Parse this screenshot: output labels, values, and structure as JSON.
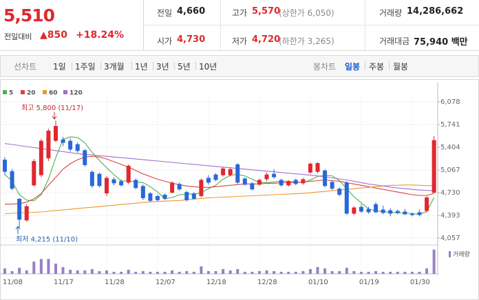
{
  "header": {
    "price": "5,510",
    "change_label": "전일대비",
    "change": "▲850",
    "change_rate": "+18.24%"
  },
  "stats": [
    [
      {
        "label": "전일",
        "value": "4,660"
      },
      {
        "label": "고가",
        "value": "5,570",
        "note": "(상한가 6,050)",
        "color": "#e0282e"
      },
      {
        "label": "거래량",
        "value": "14,286,662"
      }
    ],
    [
      {
        "label": "시가",
        "value": "4,730",
        "color": "#e0282e"
      },
      {
        "label": "저가",
        "value": "4,720",
        "note": "(하한가 3,265)",
        "color": "#e0282e"
      },
      {
        "label": "거래대금",
        "value": "75,940 백만"
      }
    ]
  ],
  "toolbar": {
    "line_chart": {
      "label": "선차트",
      "periods": [
        "1일",
        "1주일",
        "3개월",
        "1년",
        "3년",
        "5년",
        "10년"
      ]
    },
    "candle_chart": {
      "label": "봉차트",
      "periods": [
        "일봉",
        "주봉",
        "월봉"
      ]
    }
  },
  "chart_data": [
    {
      "type": "candlestick",
      "up_color": "#e0282e",
      "down_color": "#2868d8",
      "categories": [
        "11/08",
        null,
        null,
        null,
        null,
        null,
        null,
        "11/17",
        null,
        null,
        null,
        null,
        null,
        null,
        "11/28",
        null,
        null,
        null,
        null,
        null,
        null,
        "12/07",
        null,
        null,
        null,
        null,
        null,
        null,
        "12/18",
        null,
        null,
        null,
        null,
        null,
        null,
        "12/28",
        null,
        null,
        null,
        null,
        null,
        null,
        "01/10",
        null,
        null,
        null,
        null,
        null,
        null,
        "01/19",
        null,
        null,
        null,
        null,
        null,
        null,
        "01/30",
        null,
        null,
        null
      ],
      "open": [
        5220,
        5050,
        4640,
        4320,
        4840,
        4990,
        5240,
        5500,
        5520,
        5500,
        5450,
        5360,
        5040,
        5010,
        4720,
        4930,
        4900,
        4880,
        4920,
        4830,
        4720,
        4680,
        4700,
        4730,
        4860,
        4740,
        4720,
        4680,
        4950,
        5000,
        4990,
        4990,
        5150,
        4940,
        4870,
        4850,
        4930,
        5010,
        4920,
        4840,
        4920,
        4870,
        5030,
        5040,
        5060,
        4890,
        4790,
        4880,
        4420,
        4520,
        4490,
        4560,
        4480,
        4470,
        4460,
        4450,
        4420,
        4440,
        4460,
        4730
      ],
      "high": [
        5260,
        5080,
        4650,
        4560,
        5230,
        5530,
        5680,
        5800,
        5560,
        5540,
        5480,
        5380,
        5060,
        5030,
        4980,
        4960,
        4930,
        5150,
        4940,
        4850,
        4740,
        4700,
        4720,
        4900,
        4880,
        4760,
        4740,
        4940,
        4990,
        5020,
        5110,
        5110,
        5170,
        4960,
        4890,
        4940,
        5030,
        5080,
        4940,
        4920,
        4940,
        4950,
        5180,
        5180,
        5080,
        4910,
        4810,
        4900,
        4530,
        4560,
        4520,
        4590,
        4540,
        4500,
        4480,
        4490,
        4440,
        4480,
        4680,
        5570
      ],
      "low": [
        4990,
        4770,
        4215,
        4300,
        4820,
        4960,
        5200,
        5480,
        5420,
        5340,
        5320,
        5120,
        4800,
        4810,
        4680,
        4840,
        4820,
        4860,
        4780,
        4620,
        4590,
        4600,
        4620,
        4720,
        4760,
        4600,
        4630,
        4660,
        4850,
        4900,
        4970,
        4970,
        4860,
        4830,
        4760,
        4830,
        4900,
        4940,
        4820,
        4820,
        4840,
        4850,
        5010,
        5020,
        4810,
        4770,
        4680,
        4400,
        4400,
        4430,
        4420,
        4430,
        4410,
        4380,
        4410,
        4400,
        4380,
        4380,
        4440,
        4720
      ],
      "close": [
        5040,
        4790,
        4330,
        4530,
        5200,
        5500,
        5650,
        5720,
        5470,
        5370,
        5350,
        5140,
        4830,
        4830,
        4950,
        4870,
        4840,
        5130,
        4800,
        4650,
        4610,
        4620,
        4640,
        4880,
        4780,
        4620,
        4640,
        4920,
        4880,
        4920,
        5090,
        5080,
        4880,
        4850,
        4780,
        4920,
        5000,
        4960,
        4840,
        4900,
        4860,
        4930,
        5160,
        5170,
        4830,
        4790,
        4700,
        4420,
        4510,
        4450,
        4440,
        4440,
        4430,
        4420,
        4430,
        4410,
        4400,
        4400,
        4660,
        5510
      ],
      "series": [
        {
          "name": "5",
          "color": "#4caf50",
          "values": [
            5000,
            4900,
            4700,
            4620,
            4610,
            4700,
            4930,
            5250,
            5520,
            5560,
            5550,
            5470,
            5330,
            5210,
            5100,
            5000,
            4900,
            4910,
            4890,
            4880,
            4820,
            4740,
            4640,
            4660,
            4700,
            4710,
            4710,
            4730,
            4790,
            4840,
            4930,
            4990,
            5000,
            4980,
            4930,
            4880,
            4880,
            4890,
            4900,
            4900,
            4890,
            4880,
            4920,
            4970,
            4990,
            4980,
            4910,
            4790,
            4670,
            4580,
            4490,
            4460,
            4450,
            4440,
            4430,
            4430,
            4420,
            4410,
            4450,
            4660
          ]
        },
        {
          "name": "20",
          "color": "#e0403f",
          "values": [
            4560,
            4560,
            4570,
            4590,
            4640,
            4720,
            4840,
            4960,
            5080,
            5160,
            5220,
            5260,
            5270,
            5260,
            5230,
            5190,
            5150,
            5110,
            5060,
            5010,
            4970,
            4930,
            4900,
            4870,
            4850,
            4830,
            4820,
            4810,
            4810,
            4820,
            4830,
            4840,
            4850,
            4860,
            4860,
            4860,
            4870,
            4870,
            4880,
            4880,
            4880,
            4890,
            4900,
            4910,
            4920,
            4910,
            4900,
            4880,
            4860,
            4840,
            4820,
            4800,
            4780,
            4760,
            4740,
            4720,
            4700,
            4690,
            4690,
            4720
          ]
        },
        {
          "name": "60",
          "color": "#f0962c",
          "values": [
            4420,
            4425,
            4430,
            4435,
            4440,
            4445,
            4455,
            4465,
            4475,
            4485,
            4495,
            4505,
            4515,
            4525,
            4535,
            4545,
            4555,
            4565,
            4575,
            4585,
            4595,
            4600,
            4605,
            4610,
            4615,
            4625,
            4635,
            4645,
            4655,
            4660,
            4665,
            4670,
            4675,
            4680,
            4685,
            4690,
            4695,
            4700,
            4705,
            4710,
            4715,
            4720,
            4730,
            4740,
            4750,
            4760,
            4770,
            4780,
            4790,
            4800,
            4810,
            4820,
            4830,
            4840,
            4840,
            4845,
            4845,
            4840,
            4835,
            4835
          ]
        },
        {
          "name": "120",
          "color": "#a070d0",
          "values": [
            5460,
            5445,
            5430,
            5415,
            5400,
            5385,
            5370,
            5355,
            5340,
            5325,
            5310,
            5300,
            5290,
            5280,
            5270,
            5260,
            5250,
            5240,
            5230,
            5220,
            5210,
            5200,
            5190,
            5180,
            5170,
            5160,
            5150,
            5140,
            5130,
            5120,
            5110,
            5100,
            5090,
            5080,
            5070,
            5060,
            5050,
            5040,
            5030,
            5020,
            5010,
            5000,
            4990,
            4980,
            4965,
            4950,
            4935,
            4920,
            4900,
            4880,
            4860,
            4845,
            4830,
            4815,
            4800,
            4790,
            4780,
            4770,
            4765,
            4760
          ]
        }
      ],
      "ylim": [
        3996,
        6160
      ],
      "yticks": [
        {
          "value": 6078,
          "label": "6,078"
        },
        {
          "value": 5741,
          "label": "5,741"
        },
        {
          "value": 5404,
          "label": "5,404"
        },
        {
          "value": 5067,
          "label": "5,067"
        },
        {
          "value": 4730,
          "label": "4,730"
        },
        {
          "value": 4393,
          "label": "4,393"
        },
        {
          "value": 4057,
          "label": "4,057"
        }
      ],
      "grid": true,
      "annotations": [
        "최고 5,800 (11/17)",
        "최저 4,215 (11/10)"
      ]
    },
    {
      "type": "bar",
      "ylim": [
        0,
        14600000
      ],
      "series": [
        {
          "name": "거래량",
          "color": "#9a7fc7",
          "values": [
            3200000,
            1600000,
            3600000,
            2000000,
            7200000,
            8800000,
            8800000,
            6000000,
            4000000,
            2400000,
            2000000,
            2000000,
            2800000,
            1600000,
            2000000,
            1200000,
            1200000,
            2400000,
            1200000,
            1600000,
            1200000,
            1200000,
            1200000,
            2000000,
            1200000,
            1600000,
            1200000,
            4400000,
            1600000,
            1600000,
            2800000,
            2000000,
            2800000,
            1200000,
            1200000,
            1600000,
            2000000,
            1600000,
            1200000,
            1200000,
            1200000,
            1600000,
            2800000,
            4000000,
            3200000,
            1600000,
            1600000,
            3600000,
            1600000,
            1200000,
            1200000,
            1600000,
            1200000,
            1200000,
            1200000,
            1200000,
            1200000,
            1200000,
            3200000,
            14286662
          ]
        }
      ]
    }
  ]
}
